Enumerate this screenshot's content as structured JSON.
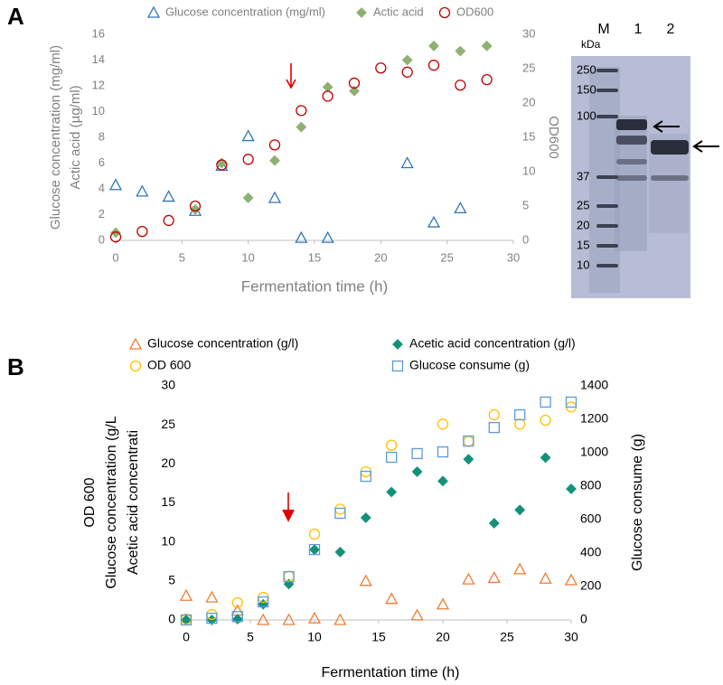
{
  "chart_data": [
    {
      "type": "scatter",
      "label": "A",
      "xlabel": "Fermentation time (h)",
      "ylabel": [
        "Glucose concentration (mg/ml)",
        "Actic acid (µg/ml)"
      ],
      "y2label": "OD600",
      "xlim": [
        0,
        30
      ],
      "xticks": [
        0,
        5,
        10,
        15,
        20,
        25,
        30
      ],
      "ylim": [
        0,
        16
      ],
      "yticks": [
        0,
        2,
        4,
        6,
        8,
        10,
        12,
        14,
        16
      ],
      "y2lim": [
        0,
        30
      ],
      "y2ticks": [
        0,
        5,
        10,
        15,
        20,
        25,
        30
      ],
      "series": [
        {
          "name": "Glucose concentration (mg/ml)",
          "color": "#2e75b6",
          "marker": "triangle",
          "filled": false,
          "x": [
            0,
            2,
            4,
            6,
            8,
            10,
            12,
            14,
            16,
            22,
            24,
            26
          ],
          "values": [
            4.3,
            3.8,
            3.4,
            2.3,
            5.8,
            8.1,
            3.3,
            0.2,
            0.2,
            6.0,
            1.4,
            2.5
          ]
        },
        {
          "name": "Actic acid",
          "color": "#8fb071",
          "marker": "diamond",
          "filled": true,
          "x": [
            0,
            6,
            8,
            10,
            12,
            14,
            16,
            18,
            22,
            24,
            26,
            28
          ],
          "values": [
            0.6,
            2.4,
            6.0,
            3.3,
            6.2,
            8.8,
            11.9,
            11.6,
            14.0,
            15.1,
            14.7,
            15.1
          ]
        },
        {
          "name": "OD600",
          "color": "#c00000",
          "marker": "circle",
          "filled": false,
          "axis": "y2",
          "x": [
            0,
            2,
            4,
            6,
            8,
            10,
            12,
            14,
            16,
            18,
            20,
            22,
            24,
            26,
            28
          ],
          "values": [
            0.5,
            1.3,
            2.9,
            5.0,
            11.0,
            11.8,
            13.9,
            18.9,
            21.0,
            22.9,
            25.1,
            24.5,
            25.5,
            22.6,
            23.4
          ]
        }
      ]
    },
    {
      "type": "scatter",
      "label": "B",
      "xlabel": "Fermentation time (h)",
      "ylabel": [
        "OD 600",
        "Glucose concentration (g/L",
        "Acetic acid concentrati"
      ],
      "y2label": "Glucose consume (g)",
      "xlim": [
        0,
        30
      ],
      "xticks": [
        0,
        5,
        10,
        15,
        20,
        25,
        30
      ],
      "ylim": [
        0,
        30
      ],
      "yticks": [
        0,
        5,
        10,
        15,
        20,
        25,
        30
      ],
      "y2lim": [
        0,
        1400
      ],
      "y2ticks": [
        0,
        200,
        400,
        600,
        800,
        1000,
        1200,
        1400
      ],
      "series": [
        {
          "name": "Glucose concentration (g/l)",
          "color": "#ed7d31",
          "marker": "triangle",
          "filled": false,
          "x": [
            0,
            2,
            4,
            6,
            8,
            10,
            12,
            14,
            16,
            18,
            20,
            22,
            24,
            26,
            28,
            30
          ],
          "values": [
            3.1,
            2.9,
            1.2,
            0,
            0,
            0.2,
            0,
            5.0,
            2.7,
            0.6,
            2.0,
            5.2,
            5.4,
            6.5,
            5.3,
            5.1
          ]
        },
        {
          "name": "Acetic acid concentration (g/l)",
          "color": "#13917a",
          "marker": "diamond",
          "filled": true,
          "x": [
            0,
            2,
            4,
            6,
            8,
            10,
            12,
            14,
            16,
            18,
            20,
            22,
            24,
            26,
            28,
            30
          ],
          "values": [
            0,
            0,
            0.1,
            2.0,
            4.6,
            9.0,
            8.7,
            13.1,
            16.4,
            19.0,
            17.8,
            20.6,
            12.4,
            14.1,
            20.8,
            16.8
          ]
        },
        {
          "name": "OD 600",
          "color": "#ffc000",
          "marker": "circle",
          "filled": false,
          "x": [
            0,
            2,
            4,
            6,
            8,
            10,
            12,
            14,
            16,
            20,
            22,
            24,
            26,
            28,
            30
          ],
          "values": [
            0.1,
            0.7,
            2.2,
            2.9,
            5.6,
            11.0,
            14.2,
            19.0,
            22.4,
            25.1,
            22.9,
            26.3,
            25.1,
            25.6,
            27.3
          ]
        },
        {
          "name": "Glucose consume (g)",
          "color": "#5b9bd5",
          "marker": "square",
          "filled": false,
          "axis": "y2",
          "x": [
            0,
            2,
            4,
            6,
            8,
            10,
            12,
            14,
            16,
            18,
            20,
            22,
            24,
            26,
            28,
            30
          ],
          "values": [
            0,
            10,
            20,
            108,
            259,
            421,
            638,
            859,
            973,
            995,
            1005,
            1070,
            1151,
            1227,
            1303,
            1303
          ]
        }
      ]
    }
  ],
  "gel": {
    "unit": "kDa",
    "lanes": [
      "M",
      "1",
      "2"
    ],
    "markers": [
      250,
      150,
      100,
      37,
      25,
      20,
      15,
      10
    ]
  }
}
